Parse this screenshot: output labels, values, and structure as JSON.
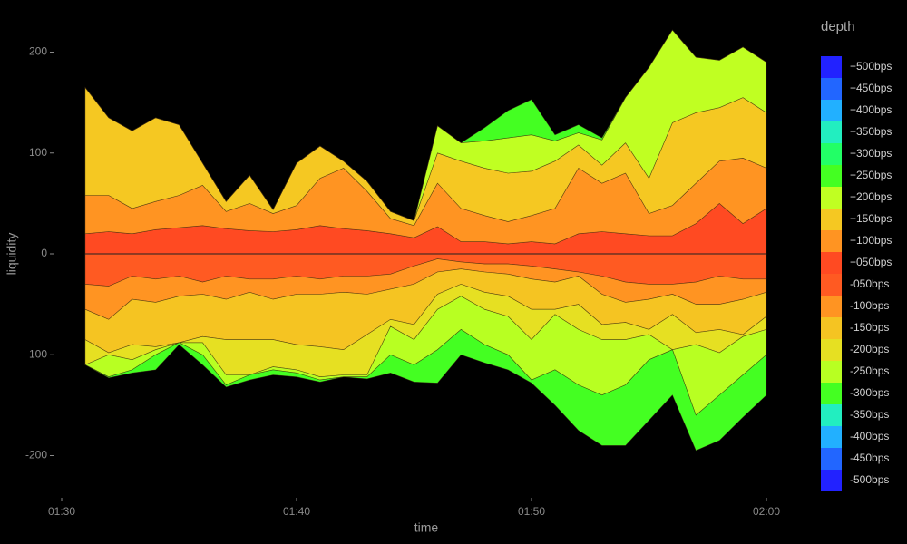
{
  "chart_data": {
    "type": "area",
    "stacked": true,
    "x_label": "time",
    "y_label": "liquidity",
    "legend_title": "depth",
    "x": [
      "01:31",
      "01:32",
      "01:33",
      "01:34",
      "01:35",
      "01:36",
      "01:37",
      "01:38",
      "01:39",
      "01:40",
      "01:41",
      "01:42",
      "01:43",
      "01:44",
      "01:45",
      "01:46",
      "01:47",
      "01:48",
      "01:49",
      "01:50",
      "01:51",
      "01:52",
      "01:53",
      "01:54",
      "01:55",
      "01:56",
      "01:57",
      "01:58",
      "01:59",
      "02:00"
    ],
    "xlim": [
      "01:30",
      "02:00"
    ],
    "xticks": [
      "01:30",
      "01:40",
      "01:50",
      "02:00"
    ],
    "ylim": [
      -240,
      240
    ],
    "yticks": [
      -200,
      -100,
      0,
      100,
      200
    ],
    "legend": "right",
    "series": [
      {
        "name": "+500bps",
        "color": "#2222ff",
        "values": [
          0,
          0,
          0,
          0,
          0,
          0,
          0,
          0,
          0,
          0,
          0,
          0,
          0,
          0,
          0,
          0,
          0,
          0,
          0,
          0,
          0,
          0,
          0,
          0,
          0,
          0,
          0,
          0,
          0,
          0
        ]
      },
      {
        "name": "+450bps",
        "color": "#2266ff",
        "values": [
          0,
          0,
          0,
          0,
          0,
          0,
          0,
          0,
          0,
          0,
          0,
          0,
          0,
          0,
          0,
          0,
          0,
          0,
          0,
          0,
          0,
          0,
          0,
          0,
          0,
          0,
          0,
          0,
          0,
          0
        ]
      },
      {
        "name": "+400bps",
        "color": "#22b0ff",
        "values": [
          0,
          0,
          0,
          0,
          0,
          0,
          0,
          0,
          0,
          0,
          0,
          0,
          0,
          0,
          0,
          0,
          0,
          0,
          0,
          0,
          0,
          0,
          0,
          0,
          0,
          0,
          0,
          0,
          0,
          0
        ]
      },
      {
        "name": "+350bps",
        "color": "#22eec0",
        "values": [
          0,
          0,
          0,
          0,
          0,
          0,
          0,
          0,
          0,
          0,
          0,
          0,
          0,
          0,
          0,
          0,
          0,
          0,
          0,
          0,
          0,
          0,
          0,
          0,
          0,
          0,
          0,
          0,
          0,
          0
        ]
      },
      {
        "name": "+300bps",
        "color": "#22ff66",
        "values": [
          0,
          0,
          0,
          0,
          0,
          0,
          0,
          0,
          0,
          0,
          0,
          0,
          0,
          0,
          0,
          0,
          0,
          0,
          0,
          0,
          0,
          0,
          0,
          0,
          0,
          0,
          0,
          0,
          0,
          0
        ]
      },
      {
        "name": "+250bps",
        "color": "#44ff22",
        "values": [
          0,
          0,
          0,
          0,
          0,
          0,
          0,
          0,
          0,
          0,
          0,
          0,
          0,
          0,
          0,
          0,
          0,
          13,
          27,
          35,
          6,
          8,
          2,
          0,
          0,
          0,
          0,
          0,
          0,
          0
        ]
      },
      {
        "name": "+200bps",
        "color": "#c0ff22",
        "values": [
          0,
          0,
          0,
          0,
          0,
          0,
          0,
          0,
          0,
          0,
          0,
          0,
          0,
          0,
          0,
          27,
          18,
          27,
          35,
          36,
          20,
          12,
          25,
          45,
          110,
          92,
          55,
          47,
          50,
          50
        ]
      },
      {
        "name": "+150bps",
        "color": "#f5c822",
        "values": [
          107,
          77,
          77,
          83,
          70,
          22,
          10,
          28,
          4,
          42,
          32,
          7,
          10,
          7,
          5,
          30,
          47,
          47,
          48,
          44,
          47,
          23,
          18,
          30,
          35,
          82,
          70,
          53,
          60,
          55
        ]
      },
      {
        "name": "+100bps",
        "color": "#ff9422",
        "values": [
          38,
          36,
          25,
          28,
          32,
          40,
          17,
          27,
          18,
          24,
          47,
          60,
          39,
          15,
          12,
          43,
          33,
          26,
          22,
          26,
          35,
          65,
          48,
          60,
          22,
          30,
          40,
          42,
          65,
          40
        ]
      },
      {
        "name": "+050bps",
        "color": "#ff4a22",
        "values": [
          20,
          22,
          20,
          24,
          26,
          28,
          25,
          23,
          22,
          24,
          28,
          25,
          23,
          20,
          16,
          27,
          12,
          12,
          10,
          12,
          10,
          20,
          22,
          20,
          18,
          18,
          30,
          50,
          30,
          45
        ]
      },
      {
        "name": "-050bps",
        "color": "#ff5a22",
        "values": [
          -30,
          -32,
          -22,
          -25,
          -22,
          -28,
          -22,
          -25,
          -25,
          -22,
          -25,
          -22,
          -22,
          -20,
          -12,
          -5,
          -8,
          -10,
          -10,
          -12,
          -15,
          -18,
          -22,
          -28,
          -30,
          -30,
          -28,
          -22,
          -25,
          -25
        ]
      },
      {
        "name": "-100bps",
        "color": "#ff9422",
        "values": [
          -25,
          -33,
          -23,
          -23,
          -20,
          -12,
          -23,
          -13,
          -20,
          -18,
          -15,
          -16,
          -18,
          -15,
          -18,
          -13,
          -7,
          -8,
          -10,
          -13,
          -13,
          -4,
          -18,
          -20,
          -15,
          -10,
          -22,
          -28,
          -20,
          -13
        ]
      },
      {
        "name": "-150bps",
        "color": "#f5c422",
        "values": [
          -30,
          -33,
          -45,
          -44,
          -46,
          -42,
          -40,
          -47,
          -40,
          -50,
          -52,
          -57,
          -40,
          -30,
          -40,
          -22,
          -15,
          -20,
          -22,
          -30,
          -27,
          -28,
          -30,
          -20,
          -30,
          -20,
          -28,
          -25,
          -35,
          -24
        ]
      },
      {
        "name": "-200bps",
        "color": "#e6e022",
        "values": [
          -25,
          -2,
          -15,
          -3,
          0,
          -6,
          -35,
          -35,
          -27,
          -25,
          -30,
          -25,
          -40,
          -7,
          -15,
          -15,
          -12,
          -17,
          -20,
          -30,
          -5,
          -25,
          -15,
          -17,
          -5,
          -35,
          -12,
          -23,
          -2,
          -13
        ]
      },
      {
        "name": "-250bps",
        "color": "#b8ff22",
        "values": [
          0,
          -22,
          -10,
          -5,
          0,
          -12,
          -10,
          0,
          -3,
          -3,
          -3,
          -2,
          -2,
          -28,
          -25,
          -40,
          -33,
          -35,
          -38,
          -40,
          -55,
          -55,
          -55,
          -45,
          -25,
          0,
          -70,
          -42,
          -38,
          -25
        ]
      },
      {
        "name": "-300bps",
        "color": "#44ff22",
        "values": [
          0,
          -1,
          -3,
          -15,
          -2,
          -10,
          -2,
          -5,
          -5,
          -4,
          -2,
          0,
          -2,
          -18,
          -17,
          -33,
          -25,
          -18,
          -15,
          -3,
          -35,
          -45,
          -50,
          -60,
          -60,
          -45,
          -35,
          -45,
          -42,
          -40
        ]
      },
      {
        "name": "-350bps",
        "color": "#22eec0",
        "values": [
          0,
          0,
          0,
          0,
          0,
          0,
          0,
          0,
          0,
          0,
          0,
          0,
          0,
          0,
          0,
          0,
          0,
          0,
          0,
          0,
          0,
          0,
          0,
          0,
          0,
          0,
          0,
          0,
          0,
          0
        ]
      },
      {
        "name": "-400bps",
        "color": "#22b0ff",
        "values": [
          0,
          0,
          0,
          0,
          0,
          0,
          0,
          0,
          0,
          0,
          0,
          0,
          0,
          0,
          0,
          0,
          0,
          0,
          0,
          0,
          0,
          0,
          0,
          0,
          0,
          0,
          0,
          0,
          0,
          0
        ]
      },
      {
        "name": "-450bps",
        "color": "#2266ff",
        "values": [
          0,
          0,
          0,
          0,
          0,
          0,
          0,
          0,
          0,
          0,
          0,
          0,
          0,
          0,
          0,
          0,
          0,
          0,
          0,
          0,
          0,
          0,
          0,
          0,
          0,
          0,
          0,
          0,
          0,
          0
        ]
      },
      {
        "name": "-500bps",
        "color": "#2222ff",
        "values": [
          0,
          0,
          0,
          0,
          0,
          0,
          0,
          0,
          0,
          0,
          0,
          0,
          0,
          0,
          0,
          0,
          0,
          0,
          0,
          0,
          0,
          0,
          0,
          0,
          0,
          0,
          0,
          0,
          0,
          0
        ]
      }
    ]
  }
}
